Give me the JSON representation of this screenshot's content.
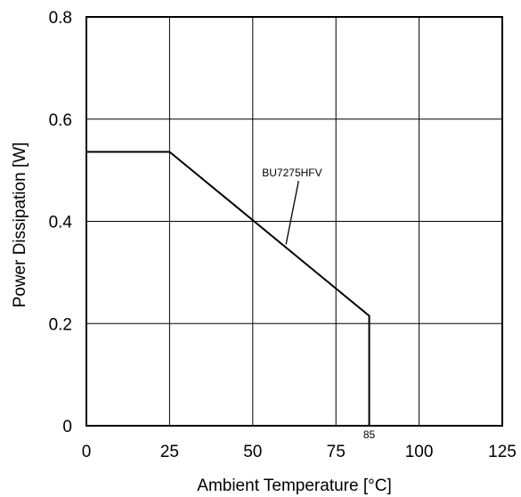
{
  "chart_data": {
    "type": "line",
    "title": "",
    "xlabel": "Ambient Temperature [°C]",
    "ylabel": "Power Dissipation [W]",
    "xlim": [
      0,
      125
    ],
    "ylim": [
      0,
      0.8
    ],
    "x_ticks": [
      0,
      25,
      50,
      75,
      100,
      125
    ],
    "x_tick_labels": [
      "0",
      "25",
      "50",
      "75",
      "100",
      "125"
    ],
    "y_ticks": [
      0,
      0.2,
      0.4,
      0.6,
      0.8
    ],
    "y_tick_labels": [
      "0",
      "0.2",
      "0.4",
      "0.6",
      "0.8"
    ],
    "grid": true,
    "series": [
      {
        "name": "BU7275HFV",
        "x": [
          0,
          25,
          85,
          85
        ],
        "y": [
          0.536,
          0.536,
          0.215,
          0
        ]
      }
    ],
    "annotations": [
      {
        "text": "BU7275HFV",
        "x": 52,
        "y": 0.5,
        "points_to": {
          "x": 60,
          "y": 0.355
        }
      },
      {
        "text": "85",
        "x": 85,
        "y": 0
      }
    ]
  }
}
